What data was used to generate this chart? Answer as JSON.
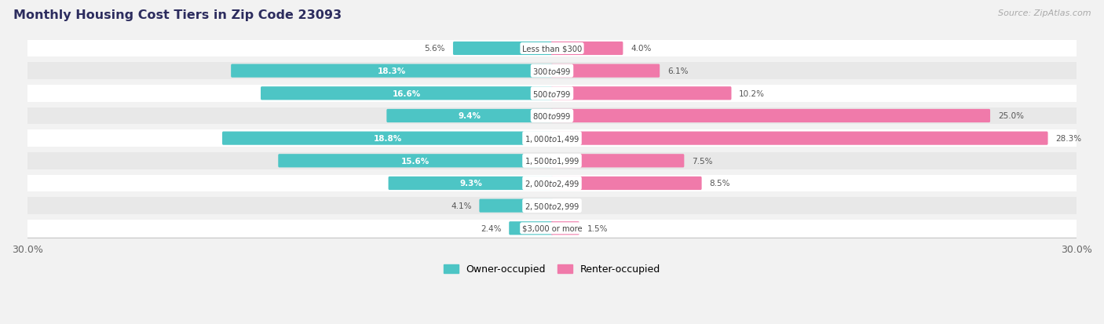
{
  "title": "Monthly Housing Cost Tiers in Zip Code 23093",
  "source": "Source: ZipAtlas.com",
  "categories": [
    "Less than $300",
    "$300 to $499",
    "$500 to $799",
    "$800 to $999",
    "$1,000 to $1,499",
    "$1,500 to $1,999",
    "$2,000 to $2,499",
    "$2,500 to $2,999",
    "$3,000 or more"
  ],
  "owner_values": [
    5.6,
    18.3,
    16.6,
    9.4,
    18.8,
    15.6,
    9.3,
    4.1,
    2.4
  ],
  "renter_values": [
    4.0,
    6.1,
    10.2,
    25.0,
    28.3,
    7.5,
    8.5,
    0.0,
    1.5
  ],
  "owner_color": "#4dc5c5",
  "renter_color": "#f07aaa",
  "bg_color": "#f2f2f2",
  "row_bg_light": "#ffffff",
  "row_bg_dark": "#e8e8e8",
  "title_color": "#2c2c5e",
  "source_color": "#aaaaaa",
  "label_white": "#ffffff",
  "label_dark": "#555555",
  "center_label_color": "#444444",
  "axis_max": 30.0,
  "inside_threshold_owner": 6.0,
  "inside_threshold_renter": 5.0
}
